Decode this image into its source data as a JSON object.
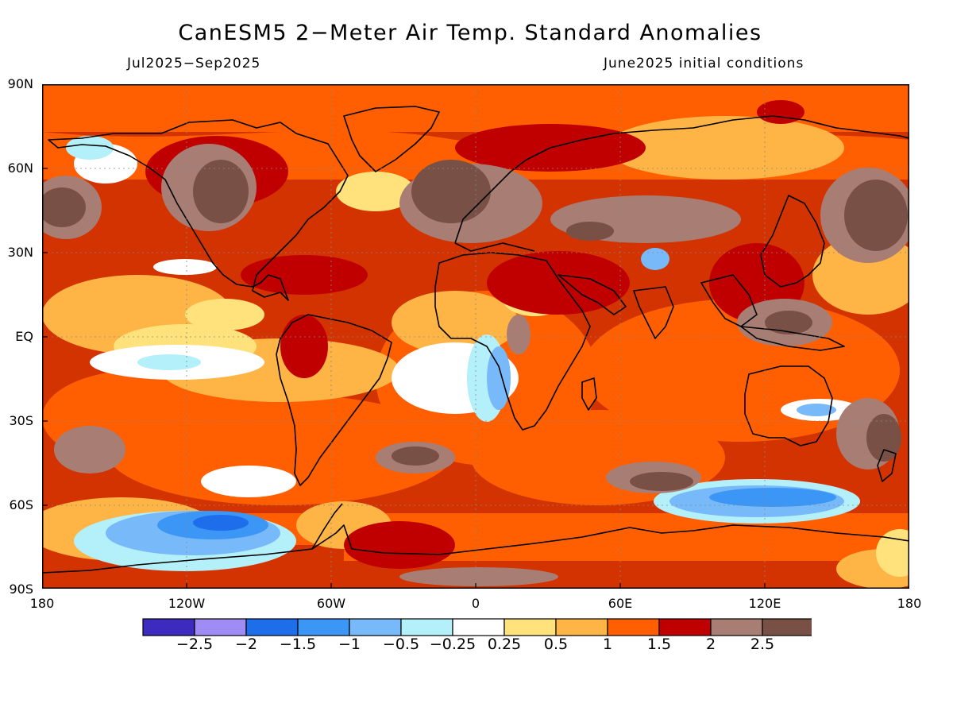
{
  "header": {
    "title": "CanESM5 2−Meter Air Temp. Standard Anomalies",
    "period": "Jul2025−Sep2025",
    "init": "June2025 initial conditions"
  },
  "map": {
    "lat_ticks": [
      "90N",
      "60N",
      "30N",
      "EQ",
      "30S",
      "60S",
      "90S"
    ],
    "lon_ticks": [
      "180",
      "120W",
      "60W",
      "0",
      "60E",
      "120E",
      "180"
    ],
    "background_color": "#d23300",
    "fill_levels": {
      "hot_extreme": "#785046",
      "hot_very": "#a87d74",
      "hot_strong": "#c00000",
      "hot": "#ff5f00",
      "warm": "#ffb446",
      "mild_warm": "#ffe27c",
      "neutral": "#ffffff",
      "mild_cool": "#b4f0fa",
      "cool": "#78b9fa",
      "cold": "#3c96f5",
      "very_cold": "#1e6eeb"
    },
    "coastline_color": "#000000"
  },
  "colorbar": {
    "labels": [
      "−2.5",
      "−2",
      "−1.5",
      "−1",
      "−0.5",
      "−0.25",
      "0.25",
      "0.5",
      "1",
      "1.5",
      "2",
      "2.5"
    ],
    "colors": [
      "#3c2bbe",
      "#a08cf5",
      "#1e6eeb",
      "#3c96f5",
      "#78b9fa",
      "#b4f0fa",
      "#ffffff",
      "#ffe27c",
      "#ffb446",
      "#ff5f00",
      "#c00000",
      "#a87d74",
      "#785046"
    ]
  }
}
